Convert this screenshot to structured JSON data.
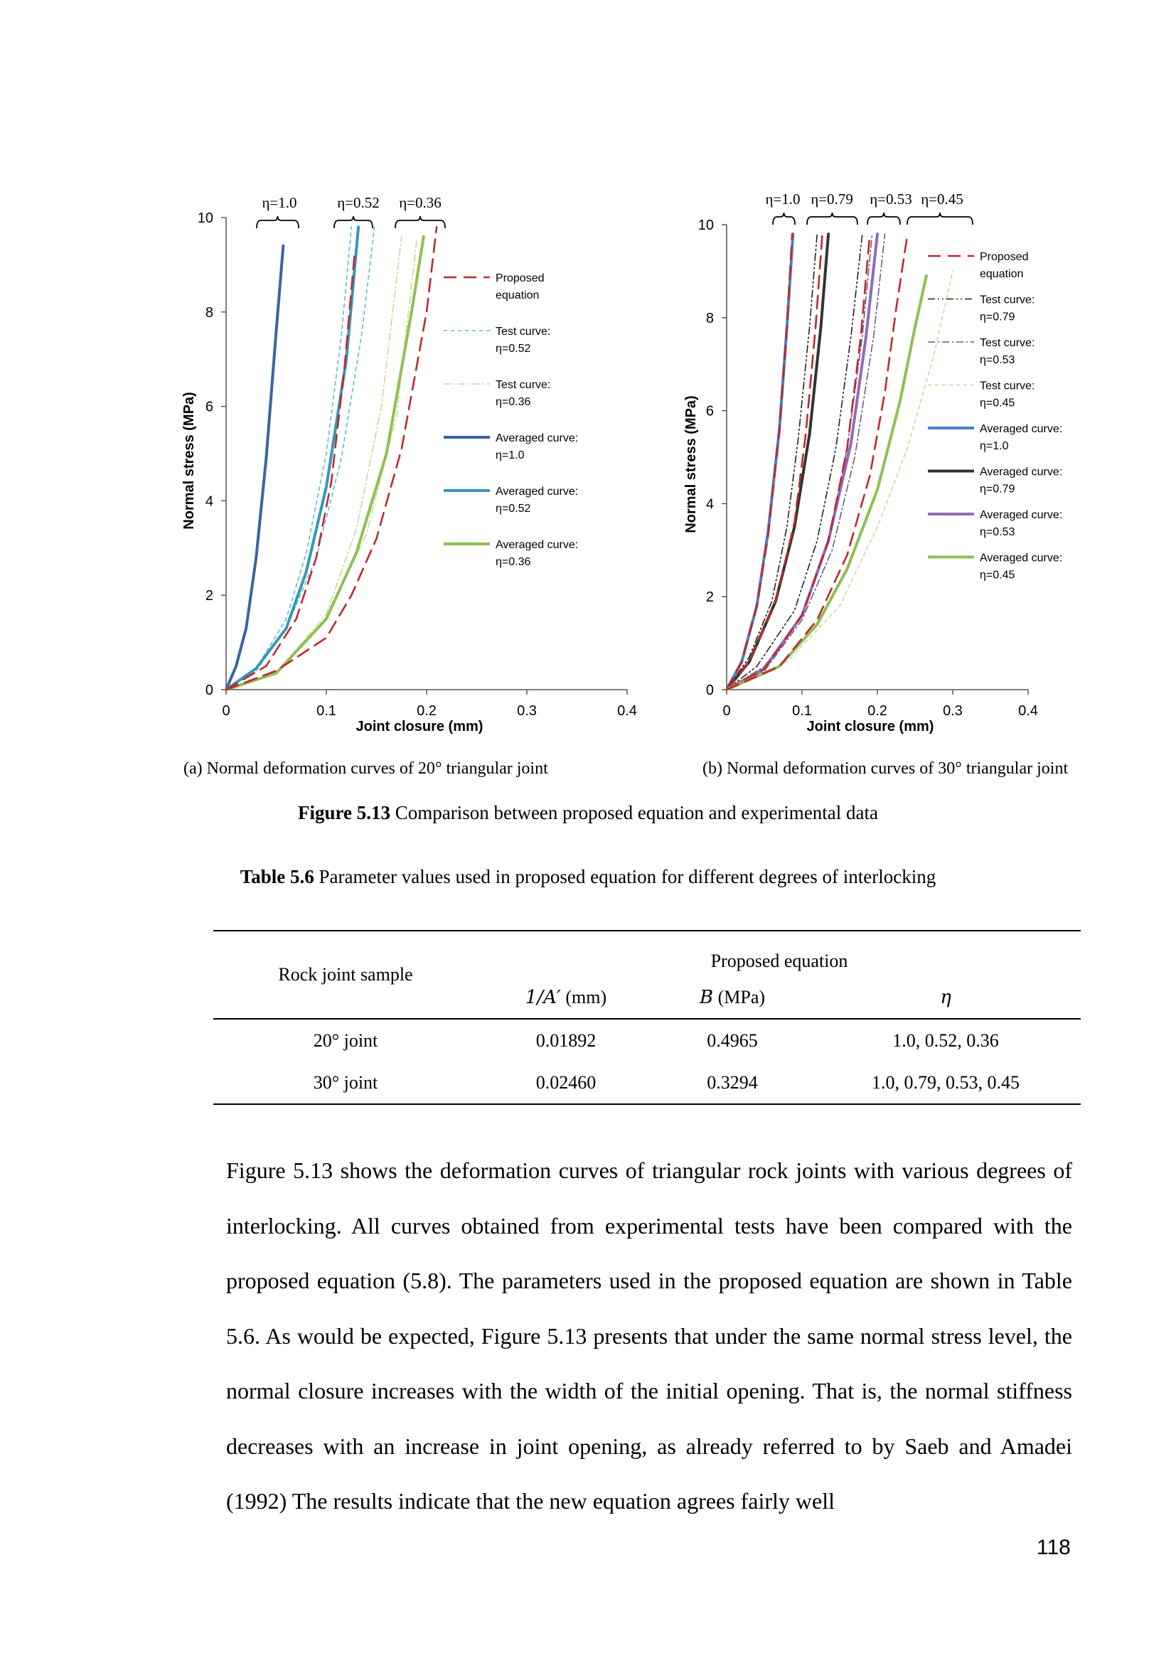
{
  "figure": {
    "panels": [
      {
        "caption": "(a) Normal deformation curves of 20° triangular joint",
        "eta_labels": [
          "η=1.0",
          "η=0.52",
          "η=0.36"
        ],
        "legend": [
          {
            "label_lines": [
              "Proposed",
              "equation"
            ],
            "color": "#c0282d",
            "dash": "18,10",
            "width": 2.6
          },
          {
            "label_lines": [
              "Test curve:",
              "η=0.52"
            ],
            "color": "#5bbcd6",
            "dash": "5,5",
            "width": 1.6
          },
          {
            "label_lines": [
              "Test curve:",
              "η=0.36"
            ],
            "color": "#c9d89a",
            "dash": "10,4,2,4",
            "width": 1.6
          },
          {
            "label_lines": [
              "Averaged curve:",
              "η=1.0"
            ],
            "color": "#3b64a3",
            "dash": "",
            "width": 4
          },
          {
            "label_lines": [
              "Averaged curve:",
              "η=0.52"
            ],
            "color": "#3498b8",
            "dash": "",
            "width": 4
          },
          {
            "label_lines": [
              "Averaged curve:",
              "η=0.36"
            ],
            "color": "#8fbf4f",
            "dash": "",
            "width": 4
          }
        ]
      },
      {
        "caption": "(b) Normal deformation curves of 30° triangular joint",
        "eta_labels": [
          "η=1.0",
          "η=0.79",
          "η=0.53",
          "η=0.45"
        ],
        "legend": [
          {
            "label_lines": [
              "Proposed",
              "equation"
            ],
            "color": "#c0282d",
            "dash": "18,10",
            "width": 2.6
          },
          {
            "label_lines": [
              "Test curve:",
              "η=0.79"
            ],
            "color": "#222222",
            "dash": "10,4,2,4,2,4",
            "width": 1.6
          },
          {
            "label_lines": [
              "Test curve:",
              "η=0.53"
            ],
            "color": "#6a5a8c",
            "dash": "10,4,2,4",
            "width": 1.6
          },
          {
            "label_lines": [
              "Test curve:",
              "η=0.45"
            ],
            "color": "#c9d89a",
            "dash": "5,5",
            "width": 1.6
          },
          {
            "label_lines": [
              "Averaged curve:",
              "η=1.0"
            ],
            "color": "#4f7fc4",
            "dash": "",
            "width": 4
          },
          {
            "label_lines": [
              "Averaged curve:",
              "η=0.79"
            ],
            "color": "#333333",
            "dash": "",
            "width": 4
          },
          {
            "label_lines": [
              "Averaged curve:",
              "η=0.53"
            ],
            "color": "#8e6bb8",
            "dash": "",
            "width": 4
          },
          {
            "label_lines": [
              "Averaged curve:",
              "η=0.45"
            ],
            "color": "#8fbf4f",
            "dash": "",
            "width": 4
          }
        ]
      }
    ],
    "caption_label": "Figure 5.13",
    "caption_text": " Comparison between proposed equation and experimental data"
  },
  "chart_data": [
    {
      "type": "line",
      "xlabel": "Joint closure (mm)",
      "ylabel": "Normal stress (MPa)",
      "xlim": [
        0,
        0.4
      ],
      "ylim": [
        0,
        10
      ],
      "xticks": [
        "0",
        "0.1",
        "0.2",
        "0.3",
        "0.4"
      ],
      "yticks": [
        "0",
        "2",
        "4",
        "6",
        "8",
        "10"
      ],
      "grid": false,
      "legend_position": "right",
      "series": [
        {
          "name": "Averaged curve: η=1.0",
          "x": [
            0,
            0.01,
            0.02,
            0.03,
            0.04,
            0.05,
            0.057
          ],
          "y": [
            0,
            0.5,
            1.3,
            2.8,
            4.9,
            7.6,
            9.4
          ]
        },
        {
          "name": "Test curve: η=0.52",
          "x": [
            0,
            0.03,
            0.06,
            0.08,
            0.1,
            0.115,
            0.125
          ],
          "y": [
            0,
            0.45,
            1.5,
            2.9,
            5.0,
            7.5,
            9.8
          ]
        },
        {
          "name": "Test curve: η=0.52",
          "x": [
            0,
            0.03,
            0.06,
            0.09,
            0.115,
            0.135,
            0.148
          ],
          "y": [
            0,
            0.4,
            1.3,
            2.8,
            4.9,
            7.5,
            9.8
          ]
        },
        {
          "name": "Averaged curve: η=0.52",
          "x": [
            0,
            0.03,
            0.06,
            0.08,
            0.1,
            0.12,
            0.132
          ],
          "y": [
            0,
            0.45,
            1.3,
            2.5,
            4.3,
            7.0,
            9.8
          ]
        },
        {
          "name": "Test curve: η=0.36",
          "x": [
            0,
            0.05,
            0.1,
            0.13,
            0.155,
            0.175
          ],
          "y": [
            0,
            0.35,
            1.6,
            3.4,
            6.0,
            9.6
          ]
        },
        {
          "name": "Test curve: η=0.36",
          "x": [
            0,
            0.05,
            0.1,
            0.14,
            0.17,
            0.19
          ],
          "y": [
            0,
            0.35,
            1.5,
            3.3,
            5.8,
            9.5
          ]
        },
        {
          "name": "Averaged curve: η=0.36",
          "x": [
            0,
            0.05,
            0.1,
            0.13,
            0.16,
            0.185,
            0.197
          ],
          "y": [
            0,
            0.35,
            1.5,
            2.9,
            5.0,
            8.0,
            9.6
          ]
        },
        {
          "name": "Proposed equation",
          "x": [
            0,
            0.05,
            0.1,
            0.125,
            0.15,
            0.175,
            0.2,
            0.21
          ],
          "y": [
            0,
            0.4,
            1.1,
            2.0,
            3.2,
            5.1,
            8.0,
            9.8
          ]
        },
        {
          "name": "Proposed equation",
          "x": [
            0,
            0.04,
            0.07,
            0.09,
            0.105,
            0.118,
            0.128
          ],
          "y": [
            0,
            0.5,
            1.5,
            2.8,
            4.4,
            6.8,
            9.2
          ]
        }
      ]
    },
    {
      "type": "line",
      "xlabel": "Joint closure (mm)",
      "ylabel": "Normal stress (MPa)",
      "xlim": [
        0,
        0.4
      ],
      "ylim": [
        0,
        10
      ],
      "xticks": [
        "0",
        "0.1",
        "0.2",
        "0.3",
        "0.4"
      ],
      "yticks": [
        "0",
        "2",
        "4",
        "6",
        "8",
        "10"
      ],
      "grid": false,
      "legend_position": "right",
      "series": [
        {
          "name": "Averaged curve: η=1.0",
          "x": [
            0,
            0.02,
            0.04,
            0.055,
            0.07,
            0.08,
            0.088
          ],
          "y": [
            0,
            0.6,
            1.8,
            3.4,
            5.6,
            7.8,
            9.8
          ]
        },
        {
          "name": "Proposed equation",
          "x": [
            0,
            0.02,
            0.04,
            0.055,
            0.07,
            0.08,
            0.087
          ],
          "y": [
            0,
            0.6,
            1.8,
            3.3,
            5.6,
            7.8,
            9.8
          ]
        },
        {
          "name": "Test curve: η=0.79",
          "x": [
            0,
            0.03,
            0.06,
            0.08,
            0.095,
            0.11,
            0.12
          ],
          "y": [
            0,
            0.7,
            1.9,
            3.5,
            5.4,
            7.8,
            9.8
          ]
        },
        {
          "name": "Test curve: η=0.79",
          "x": [
            0,
            0.04,
            0.09,
            0.12,
            0.145,
            0.165,
            0.18
          ],
          "y": [
            0,
            0.5,
            1.7,
            3.2,
            5.2,
            7.6,
            9.8
          ]
        },
        {
          "name": "Averaged curve: η=0.79",
          "x": [
            0,
            0.03,
            0.065,
            0.09,
            0.11,
            0.125,
            0.135
          ],
          "y": [
            0,
            0.6,
            1.9,
            3.5,
            5.5,
            7.8,
            9.8
          ]
        },
        {
          "name": "Proposed equation",
          "x": [
            0,
            0.03,
            0.065,
            0.09,
            0.105,
            0.118,
            0.127
          ],
          "y": [
            0,
            0.6,
            1.9,
            3.6,
            5.5,
            7.8,
            9.8
          ]
        },
        {
          "name": "Test curve: η=0.53",
          "x": [
            0,
            0.05,
            0.1,
            0.135,
            0.16,
            0.18,
            0.193
          ],
          "y": [
            0,
            0.5,
            1.6,
            3.2,
            5.2,
            7.6,
            9.8
          ]
        },
        {
          "name": "Test curve: η=0.53",
          "x": [
            0,
            0.05,
            0.1,
            0.14,
            0.17,
            0.195,
            0.21
          ],
          "y": [
            0,
            0.4,
            1.5,
            3.0,
            5.0,
            7.6,
            9.8
          ]
        },
        {
          "name": "Averaged curve: η=0.53",
          "x": [
            0,
            0.05,
            0.1,
            0.135,
            0.165,
            0.185,
            0.2
          ],
          "y": [
            0,
            0.45,
            1.6,
            3.2,
            5.3,
            7.6,
            9.8
          ]
        },
        {
          "name": "Proposed equation",
          "x": [
            0,
            0.05,
            0.1,
            0.135,
            0.16,
            0.178,
            0.19
          ],
          "y": [
            0,
            0.45,
            1.6,
            3.2,
            5.2,
            7.6,
            9.8
          ]
        },
        {
          "name": "Test curve: η=0.45",
          "x": [
            0,
            0.08,
            0.15,
            0.2,
            0.24,
            0.275,
            0.3
          ],
          "y": [
            0,
            0.6,
            1.8,
            3.5,
            5.2,
            7.2,
            9.0
          ]
        },
        {
          "name": "Averaged curve: η=0.45",
          "x": [
            0,
            0.07,
            0.12,
            0.16,
            0.2,
            0.23,
            0.25,
            0.265
          ],
          "y": [
            0,
            0.5,
            1.4,
            2.6,
            4.3,
            6.2,
            7.8,
            8.9
          ]
        },
        {
          "name": "Proposed equation",
          "x": [
            0,
            0.07,
            0.12,
            0.16,
            0.19,
            0.21,
            0.225,
            0.24
          ],
          "y": [
            0,
            0.5,
            1.5,
            2.9,
            4.6,
            6.4,
            8.2,
            9.8
          ]
        }
      ]
    }
  ],
  "table": {
    "caption_label": "Table 5.6",
    "caption_text": " Parameter values used in proposed equation for different degrees of interlocking",
    "row_header": "Rock joint sample",
    "group_header": "Proposed equation",
    "col_headers": [
      {
        "sym": "1/A′",
        "unit": " (mm)"
      },
      {
        "sym": "B",
        "unit": " (MPa)"
      },
      {
        "sym": "η",
        "unit": ""
      }
    ],
    "rows": [
      [
        "20° joint",
        "0.01892",
        "0.4965",
        "1.0, 0.52, 0.36"
      ],
      [
        "30° joint",
        "0.02460",
        "0.3294",
        "1.0, 0.79, 0.53, 0.45"
      ]
    ]
  },
  "body_text": "Figure 5.13 shows the deformation curves of triangular rock joints with various degrees of interlocking. All curves obtained from experimental tests have been compared with the proposed equation (5.8). The parameters used in the proposed equation are shown in Table 5.6. As would be expected, Figure 5.13 presents that under the same normal stress level, the normal closure increases with the width of the initial opening. That is, the normal stiffness decreases with an increase in joint opening, as already referred to by Saeb and Amadei (1992) The results indicate that the new equation agrees fairly well",
  "page_number": "118"
}
